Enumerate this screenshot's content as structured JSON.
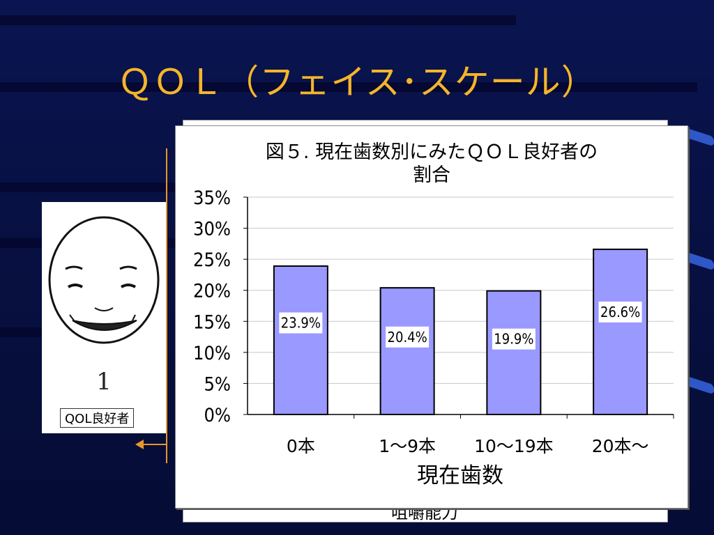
{
  "slide": {
    "title": "ＱＯＬ（フェイス･スケール）",
    "back_caption": "咀嚼能力"
  },
  "face_panel": {
    "number": "1",
    "label": "QOL良好者"
  },
  "colors": {
    "title": "#f5b52a",
    "bar_fill": "#9999ff",
    "bar_stroke": "#000000",
    "accent_line": "#e8962a"
  },
  "chart_data": {
    "type": "bar",
    "title": "図５. 現在歯数別にみたＱＯＬ良好者の割合",
    "title_lines": [
      "図５. 現在歯数別にみたＱＯＬ良好者の",
      "割合"
    ],
    "categories": [
      "0本",
      "1〜9本",
      "10〜19本",
      "20本〜"
    ],
    "values": [
      23.9,
      20.4,
      19.9,
      26.6
    ],
    "data_labels": [
      "23.9%",
      "20.4%",
      "19.9%",
      "26.6%"
    ],
    "xlabel": "現在歯数",
    "ylabel": "",
    "ylim": [
      0,
      35
    ],
    "yticks": [
      "0%",
      "5%",
      "10%",
      "15%",
      "20%",
      "25%",
      "30%",
      "35%"
    ],
    "grid": true,
    "legend": "none"
  }
}
